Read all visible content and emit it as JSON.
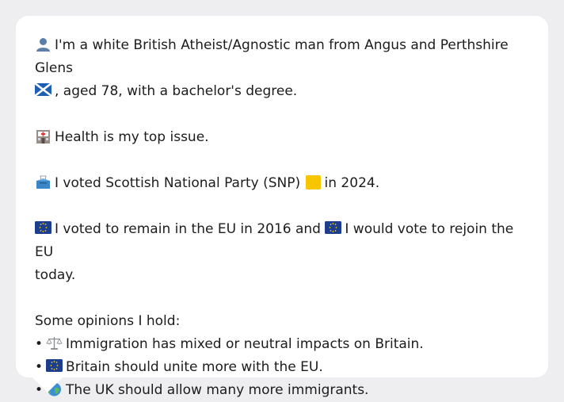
{
  "profile": {
    "intro_pre": "I'm a white British Atheist/Agnostic man from Angus and Perthshire Glens",
    "intro_post": ", aged 78, with a bachelor's degree.",
    "icons": {
      "person": "person-icon",
      "flag": "scotland-flag-icon"
    }
  },
  "health": {
    "text": "Health is my top issue.",
    "icon": "hospital-icon"
  },
  "vote2024": {
    "pre": "I voted Scottish National Party (SNP)",
    "post": "in 2024.",
    "icons": {
      "ballot": "ballot-box-icon",
      "party": "yellow-square-icon"
    },
    "party_color": "#f7c600"
  },
  "eu": {
    "pre": "I voted to remain in the EU in 2016 and",
    "post": "I would vote to rejoin the EU",
    "post2": "today.",
    "icon": "eu-flag-icon",
    "eu_color": "#1d3d8f"
  },
  "opinions": {
    "heading": "Some opinions I hold:",
    "bullet": "•",
    "items": [
      {
        "icon": "balance-scale-icon",
        "text": "Immigration has mixed or neutral impacts on Britain."
      },
      {
        "icon": "eu-flag-icon",
        "text": "Britain should unite more with the EU."
      },
      {
        "icon": "globe-icon",
        "text": "The UK should allow many more immigrants."
      }
    ]
  }
}
